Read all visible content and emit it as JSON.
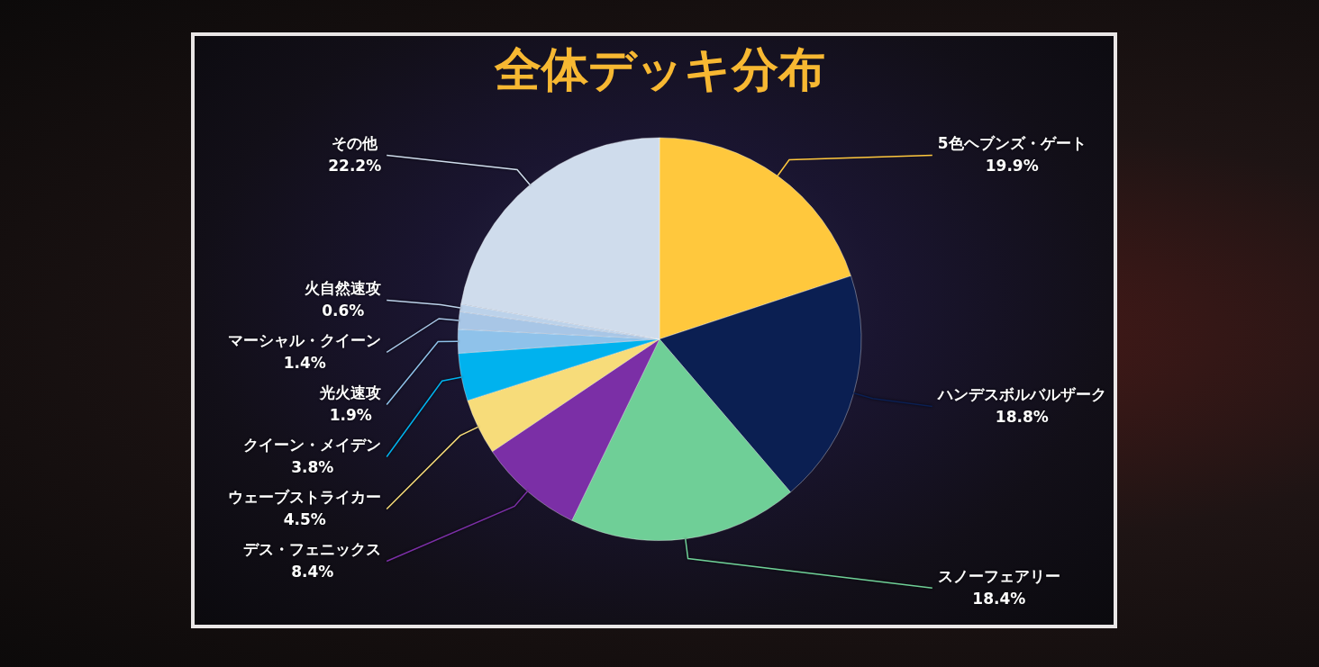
{
  "chart_data": {
    "type": "pie",
    "title": "全体デッキ分布",
    "categories": [
      "5色ヘブンズ・ゲート",
      "ハンデスボルバルザーク",
      "スノーフェアリー",
      "デス・フェニックス",
      "ウェーブストライカー",
      "クイーン・メイデン",
      "光火速攻",
      "マーシャル・クイーン",
      "火自然速攻",
      "その他"
    ],
    "values": [
      19.9,
      18.8,
      18.4,
      8.4,
      4.5,
      3.8,
      1.9,
      1.4,
      0.6,
      22.2
    ],
    "value_labels": [
      "19.9%",
      "18.8%",
      "18.4%",
      "8.4%",
      "4.5%",
      "3.8%",
      "1.9%",
      "1.4%",
      "0.6%",
      "22.2%"
    ],
    "colors": [
      "#ffc83d",
      "#0b1f52",
      "#6fcf97",
      "#7b2fa6",
      "#f7dc7a",
      "#00b2ee",
      "#8fc2ea",
      "#a8c6e6",
      "#bcd2ea",
      "#cfdcec"
    ],
    "data_labels": true
  }
}
